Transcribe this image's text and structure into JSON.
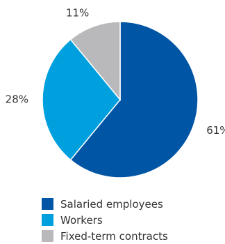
{
  "chart_data": {
    "type": "pie",
    "start": "top",
    "direction": "clockwise",
    "slices": [
      {
        "label": "Salaried employees",
        "value": 61,
        "display": "61%",
        "color": "#0055a5"
      },
      {
        "label": "Workers",
        "value": 28,
        "display": "28%",
        "color": "#00a0df"
      },
      {
        "label": "Fixed-term contracts",
        "value": 11,
        "display": "11%",
        "color": "#b9b9bb"
      }
    ]
  }
}
